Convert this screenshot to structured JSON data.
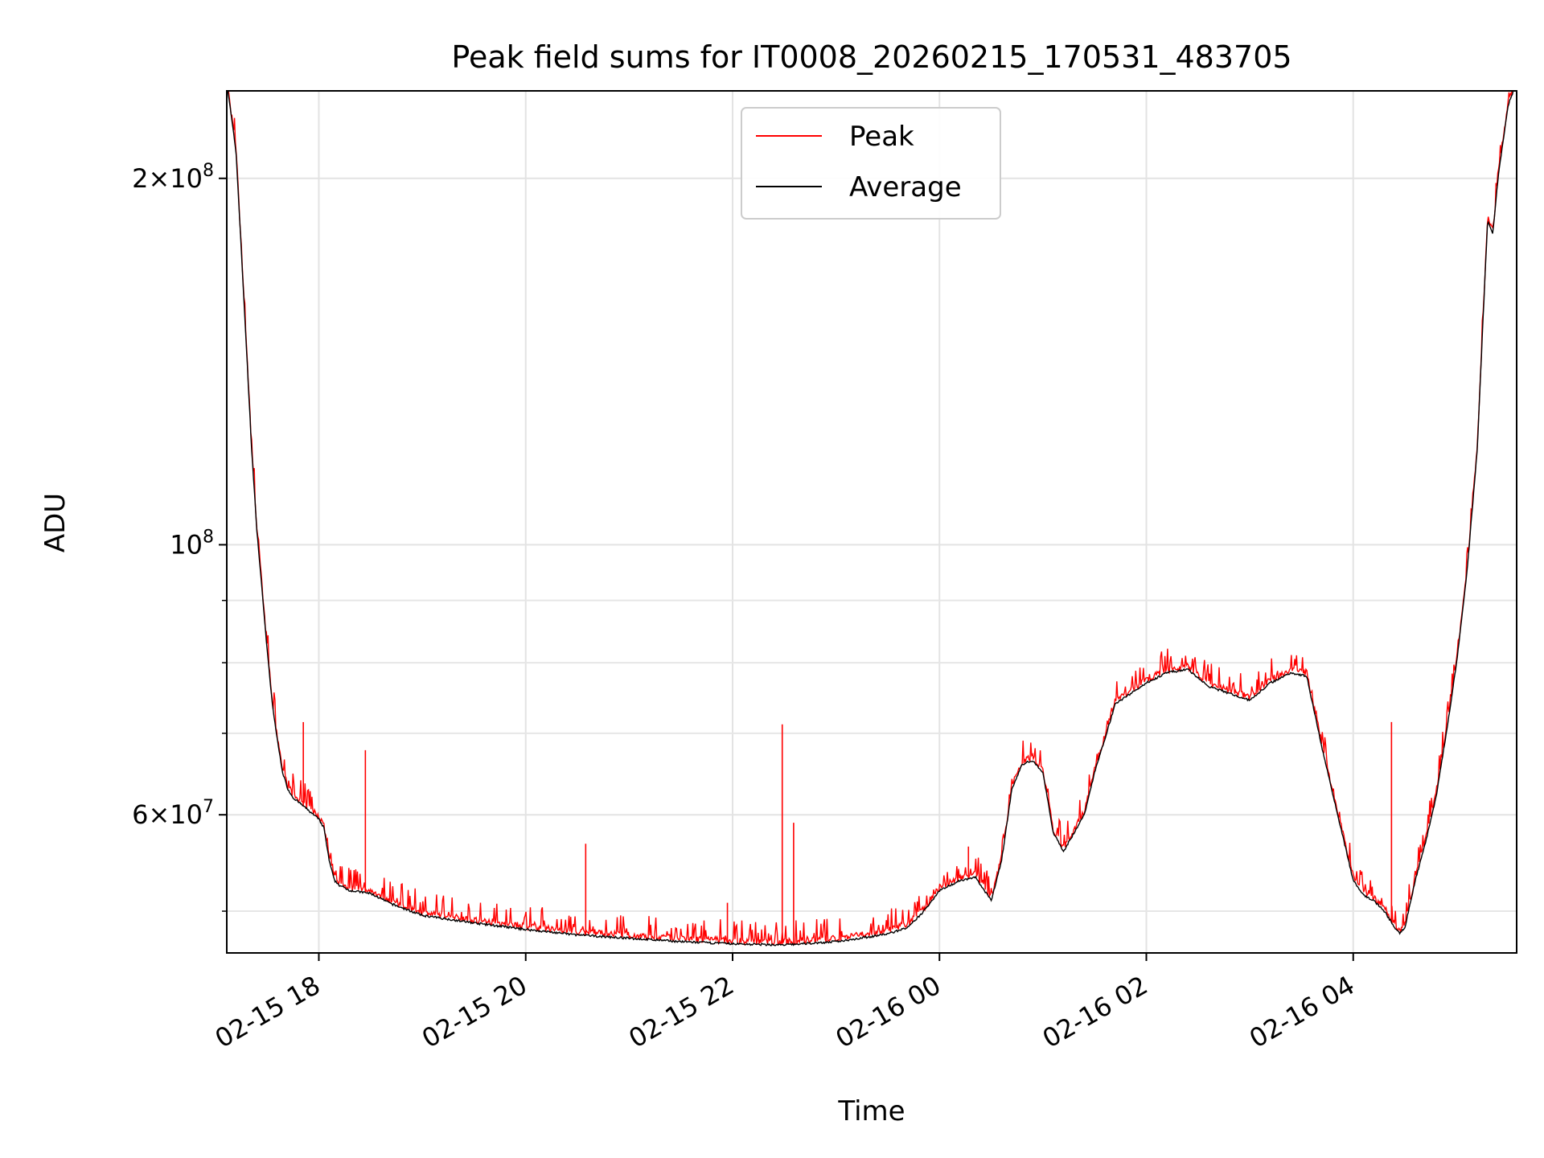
{
  "chart_data": {
    "type": "line",
    "title": "Peak field sums for IT0008_20260215_170531_483705",
    "xlabel": "Time",
    "ylabel": "ADU",
    "yscale": "log",
    "grid": true,
    "legend_position": "upper-center",
    "x_range_hours_from_0215_0000": [
      17.11,
      29.58
    ],
    "ylim": [
      46200000,
      236000000
    ],
    "x_ticks": [
      {
        "label": "02-15 18",
        "hour": 18
      },
      {
        "label": "02-15 20",
        "hour": 20
      },
      {
        "label": "02-15 22",
        "hour": 22
      },
      {
        "label": "02-16 00",
        "hour": 24
      },
      {
        "label": "02-16 02",
        "hour": 26
      },
      {
        "label": "02-16 04",
        "hour": 28
      }
    ],
    "y_major_ticks": [
      {
        "value": 60000000,
        "mantissa": "6",
        "exp": "7"
      },
      {
        "value": 100000000,
        "mantissa": "",
        "exp": "8"
      },
      {
        "value": 200000000,
        "mantissa": "2",
        "exp": "8"
      }
    ],
    "y_minor_ticks": [
      50000000,
      70000000,
      80000000,
      90000000
    ],
    "series": [
      {
        "name": "Peak",
        "color": "#ff0000",
        "note": "tracks Average with small positive spikes",
        "spikes": [
          {
            "hour": 17.85,
            "value": 71500000
          },
          {
            "hour": 18.45,
            "value": 67800000
          },
          {
            "hour": 20.58,
            "value": 56800000
          },
          {
            "hour": 21.95,
            "value": 50800000
          },
          {
            "hour": 22.48,
            "value": 71200000
          },
          {
            "hour": 22.59,
            "value": 59100000
          },
          {
            "hour": 24.28,
            "value": 56500000
          },
          {
            "hour": 28.37,
            "value": 71500000
          }
        ]
      },
      {
        "name": "Average",
        "color": "#000000",
        "x_hours": [
          17.11,
          17.2,
          17.25,
          17.3,
          17.35,
          17.4,
          17.45,
          17.5,
          17.55,
          17.6,
          17.65,
          17.7,
          17.75,
          17.8,
          17.85,
          17.9,
          18.0,
          18.05,
          18.1,
          18.15,
          18.2,
          18.3,
          18.5,
          18.7,
          19.0,
          19.5,
          20.0,
          20.5,
          21.0,
          21.5,
          22.0,
          22.5,
          23.0,
          23.3,
          23.5,
          23.7,
          23.85,
          24.0,
          24.2,
          24.35,
          24.4,
          24.5,
          24.6,
          24.7,
          24.8,
          24.9,
          25.0,
          25.1,
          25.2,
          25.4,
          25.5,
          25.7,
          26.0,
          26.2,
          26.4,
          26.6,
          26.8,
          27.0,
          27.2,
          27.4,
          27.55,
          27.7,
          27.85,
          28.0,
          28.1,
          28.2,
          28.3,
          28.4,
          28.45,
          28.5,
          28.6,
          28.7,
          28.8,
          28.9,
          29.0,
          29.1,
          29.2,
          29.25,
          29.3,
          29.35,
          29.4,
          29.45,
          29.5,
          29.58
        ],
        "values": [
          240000000,
          210000000,
          175000000,
          145000000,
          120000000,
          103000000,
          92000000,
          82000000,
          74000000,
          69000000,
          65000000,
          63000000,
          62000000,
          61500000,
          61000000,
          60500000,
          59500000,
          58500000,
          55000000,
          53000000,
          52500000,
          52000000,
          51700000,
          50700000,
          49600000,
          48900000,
          48300000,
          47800000,
          47500000,
          47200000,
          47000000,
          46900000,
          47200000,
          47600000,
          47900000,
          48500000,
          50000000,
          52000000,
          53000000,
          53300000,
          52500000,
          51000000,
          55000000,
          63000000,
          66000000,
          66500000,
          65000000,
          58000000,
          56000000,
          60000000,
          65000000,
          74000000,
          77000000,
          78500000,
          79000000,
          76500000,
          75500000,
          74500000,
          77000000,
          78500000,
          78000000,
          68000000,
          60000000,
          53000000,
          51500000,
          51000000,
          50000000,
          48500000,
          48000000,
          48500000,
          53000000,
          57000000,
          62000000,
          70000000,
          80000000,
          95000000,
          120000000,
          150000000,
          185000000,
          180000000,
          200000000,
          215000000,
          230000000,
          240000000
        ]
      }
    ]
  }
}
